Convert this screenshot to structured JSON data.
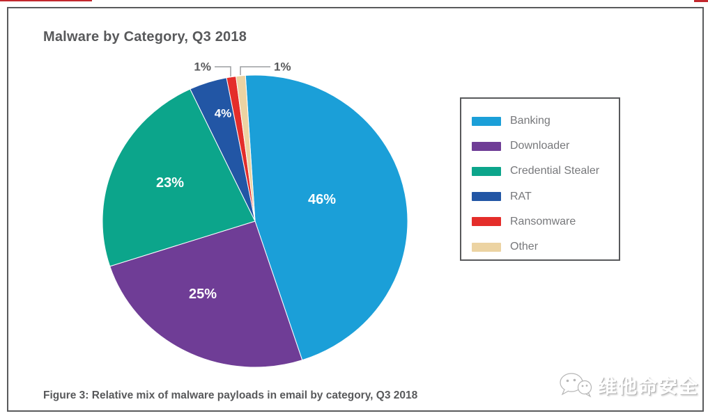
{
  "title": "Malware by Category, Q3 2018",
  "caption": "Figure 3: Relative mix of malware payloads in email by category, Q3 2018",
  "watermark": {
    "text": "维他命安全"
  },
  "colors": {
    "accent_red": "#c2272d",
    "frame_border": "#595a5c",
    "legend_border": "#58595b",
    "title_text": "#58595b",
    "legend_text": "#77787b",
    "callout_line": "#9b9da0",
    "slice_label_inside": "#ffffff",
    "slice_label_outside": "#58595b"
  },
  "chart_data": {
    "type": "pie",
    "title": "Malware by Category, Q3 2018",
    "legend_position": "right",
    "clockwise": true,
    "start_angle_deg": -3.6,
    "unit": "%",
    "categories": [
      "Banking",
      "Downloader",
      "Credential Stealer",
      "RAT",
      "Ransomware",
      "Other"
    ],
    "values": [
      46,
      25,
      23,
      4,
      1,
      1
    ],
    "labels": [
      "46%",
      "25%",
      "23%",
      "4%",
      "1%",
      "1%"
    ],
    "colors": [
      "#1b9fd8",
      "#6f3d96",
      "#0ca58b",
      "#2256a5",
      "#e42d2a",
      "#ecd3a2"
    ]
  },
  "legend": {
    "items": [
      {
        "label": "Banking",
        "color": "#1b9fd8"
      },
      {
        "label": "Downloader",
        "color": "#6f3d96"
      },
      {
        "label": "Credential Stealer",
        "color": "#0ca58b"
      },
      {
        "label": "RAT",
        "color": "#2256a5"
      },
      {
        "label": "Ransomware",
        "color": "#e42d2a"
      },
      {
        "label": "Other",
        "color": "#ecd3a2"
      }
    ]
  }
}
